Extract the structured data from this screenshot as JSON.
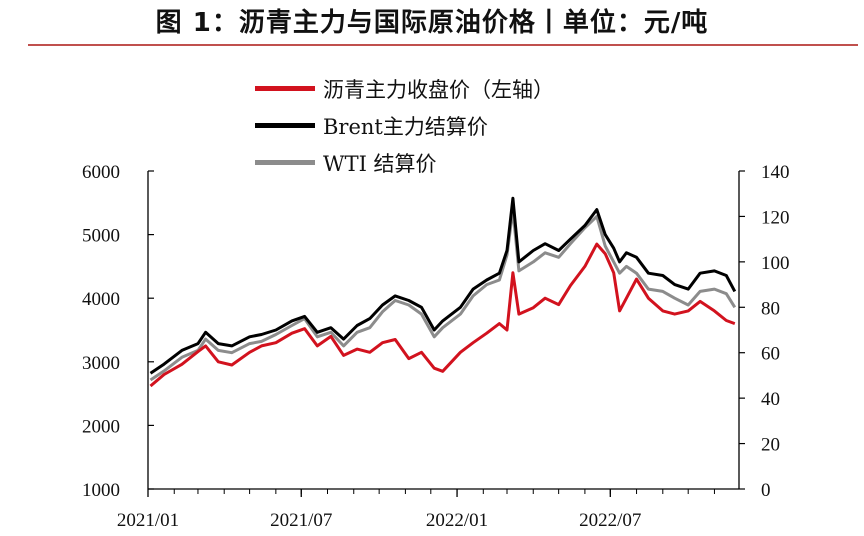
{
  "title": "图 1：沥青主力与国际原油价格丨单位：元/吨",
  "colors": {
    "asphalt": "#d2121e",
    "brent": "#000000",
    "wti": "#8c8c8c",
    "title_rule": "#c0504d"
  },
  "chart_data": {
    "type": "line",
    "legend_placement": "top-center",
    "grid": false,
    "x": {
      "range": [
        "2021-01-01",
        "2022-11-30"
      ],
      "ticks": [
        "2021/01",
        "2021/07",
        "2022/01",
        "2022/07"
      ],
      "tick_dates": [
        "2021-01-01",
        "2021-07-01",
        "2022-01-01",
        "2022-07-01"
      ]
    },
    "y_left": {
      "range": [
        1000,
        6000
      ],
      "ticks": [
        1000,
        2000,
        3000,
        4000,
        5000,
        6000
      ]
    },
    "y_right": {
      "range": [
        0,
        140
      ],
      "ticks": [
        0,
        20,
        40,
        60,
        80,
        100,
        120,
        140
      ]
    },
    "series": [
      {
        "name": "沥青主力收盘价（左轴）",
        "key": "asphalt",
        "axis": "left",
        "points": [
          [
            "2021-01-04",
            2620
          ],
          [
            "2021-01-20",
            2800
          ],
          [
            "2021-02-10",
            2960
          ],
          [
            "2021-03-01",
            3160
          ],
          [
            "2021-03-10",
            3250
          ],
          [
            "2021-03-25",
            3000
          ],
          [
            "2021-04-10",
            2950
          ],
          [
            "2021-05-01",
            3150
          ],
          [
            "2021-05-15",
            3250
          ],
          [
            "2021-06-01",
            3300
          ],
          [
            "2021-06-20",
            3450
          ],
          [
            "2021-07-05",
            3520
          ],
          [
            "2021-07-20",
            3250
          ],
          [
            "2021-08-05",
            3400
          ],
          [
            "2021-08-20",
            3100
          ],
          [
            "2021-09-05",
            3200
          ],
          [
            "2021-09-20",
            3150
          ],
          [
            "2021-10-05",
            3300
          ],
          [
            "2021-10-20",
            3350
          ],
          [
            "2021-11-05",
            3050
          ],
          [
            "2021-11-20",
            3150
          ],
          [
            "2021-12-05",
            2900
          ],
          [
            "2021-12-15",
            2850
          ],
          [
            "2022-01-05",
            3150
          ],
          [
            "2022-01-20",
            3300
          ],
          [
            "2022-02-05",
            3450
          ],
          [
            "2022-02-20",
            3600
          ],
          [
            "2022-03-01",
            3500
          ],
          [
            "2022-03-08",
            4400
          ],
          [
            "2022-03-15",
            3750
          ],
          [
            "2022-04-01",
            3850
          ],
          [
            "2022-04-15",
            4000
          ],
          [
            "2022-05-01",
            3900
          ],
          [
            "2022-05-15",
            4200
          ],
          [
            "2022-06-01",
            4500
          ],
          [
            "2022-06-15",
            4850
          ],
          [
            "2022-06-25",
            4700
          ],
          [
            "2022-07-05",
            4400
          ],
          [
            "2022-07-12",
            3800
          ],
          [
            "2022-07-20",
            4000
          ],
          [
            "2022-08-01",
            4300
          ],
          [
            "2022-08-15",
            4000
          ],
          [
            "2022-09-01",
            3800
          ],
          [
            "2022-09-15",
            3750
          ],
          [
            "2022-10-01",
            3800
          ],
          [
            "2022-10-15",
            3950
          ],
          [
            "2022-11-01",
            3800
          ],
          [
            "2022-11-15",
            3650
          ],
          [
            "2022-11-25",
            3600
          ]
        ]
      },
      {
        "name": "Brent主力结算价",
        "key": "brent",
        "axis": "right",
        "points": [
          [
            "2021-01-04",
            51
          ],
          [
            "2021-01-20",
            55
          ],
          [
            "2021-02-10",
            61
          ],
          [
            "2021-03-01",
            64
          ],
          [
            "2021-03-10",
            69
          ],
          [
            "2021-03-25",
            64
          ],
          [
            "2021-04-10",
            63
          ],
          [
            "2021-05-01",
            67
          ],
          [
            "2021-05-15",
            68
          ],
          [
            "2021-06-01",
            70
          ],
          [
            "2021-06-20",
            74
          ],
          [
            "2021-07-05",
            76
          ],
          [
            "2021-07-20",
            69
          ],
          [
            "2021-08-05",
            71
          ],
          [
            "2021-08-20",
            66
          ],
          [
            "2021-09-05",
            72
          ],
          [
            "2021-09-20",
            75
          ],
          [
            "2021-10-05",
            81
          ],
          [
            "2021-10-20",
            85
          ],
          [
            "2021-11-05",
            83
          ],
          [
            "2021-11-20",
            80
          ],
          [
            "2021-12-05",
            70
          ],
          [
            "2021-12-15",
            74
          ],
          [
            "2022-01-05",
            80
          ],
          [
            "2022-01-20",
            88
          ],
          [
            "2022-02-05",
            92
          ],
          [
            "2022-02-20",
            95
          ],
          [
            "2022-03-01",
            105
          ],
          [
            "2022-03-08",
            128
          ],
          [
            "2022-03-15",
            100
          ],
          [
            "2022-04-01",
            105
          ],
          [
            "2022-04-15",
            108
          ],
          [
            "2022-05-01",
            105
          ],
          [
            "2022-05-15",
            110
          ],
          [
            "2022-06-01",
            116
          ],
          [
            "2022-06-15",
            123
          ],
          [
            "2022-06-25",
            112
          ],
          [
            "2022-07-05",
            106
          ],
          [
            "2022-07-12",
            100
          ],
          [
            "2022-07-20",
            104
          ],
          [
            "2022-08-01",
            102
          ],
          [
            "2022-08-15",
            95
          ],
          [
            "2022-09-01",
            94
          ],
          [
            "2022-09-15",
            90
          ],
          [
            "2022-10-01",
            88
          ],
          [
            "2022-10-15",
            95
          ],
          [
            "2022-11-01",
            96
          ],
          [
            "2022-11-15",
            94
          ],
          [
            "2022-11-25",
            87
          ]
        ]
      },
      {
        "name": "WTI 结算价",
        "key": "wti",
        "axis": "right",
        "points": [
          [
            "2021-01-04",
            48
          ],
          [
            "2021-01-20",
            52
          ],
          [
            "2021-02-10",
            58
          ],
          [
            "2021-03-01",
            61
          ],
          [
            "2021-03-10",
            66
          ],
          [
            "2021-03-25",
            61
          ],
          [
            "2021-04-10",
            60
          ],
          [
            "2021-05-01",
            64
          ],
          [
            "2021-05-15",
            65
          ],
          [
            "2021-06-01",
            68
          ],
          [
            "2021-06-20",
            72
          ],
          [
            "2021-07-05",
            75
          ],
          [
            "2021-07-20",
            67
          ],
          [
            "2021-08-05",
            69
          ],
          [
            "2021-08-20",
            63
          ],
          [
            "2021-09-05",
            69
          ],
          [
            "2021-09-20",
            71
          ],
          [
            "2021-10-05",
            78
          ],
          [
            "2021-10-20",
            83
          ],
          [
            "2021-11-05",
            81
          ],
          [
            "2021-11-20",
            77
          ],
          [
            "2021-12-05",
            67
          ],
          [
            "2021-12-15",
            71
          ],
          [
            "2022-01-05",
            77
          ],
          [
            "2022-01-20",
            85
          ],
          [
            "2022-02-05",
            90
          ],
          [
            "2022-02-20",
            92
          ],
          [
            "2022-03-01",
            103
          ],
          [
            "2022-03-08",
            123
          ],
          [
            "2022-03-15",
            96
          ],
          [
            "2022-04-01",
            100
          ],
          [
            "2022-04-15",
            104
          ],
          [
            "2022-05-01",
            102
          ],
          [
            "2022-05-15",
            108
          ],
          [
            "2022-06-01",
            115
          ],
          [
            "2022-06-15",
            120
          ],
          [
            "2022-06-25",
            107
          ],
          [
            "2022-07-05",
            100
          ],
          [
            "2022-07-12",
            95
          ],
          [
            "2022-07-20",
            98
          ],
          [
            "2022-08-01",
            95
          ],
          [
            "2022-08-15",
            88
          ],
          [
            "2022-09-01",
            87
          ],
          [
            "2022-09-15",
            84
          ],
          [
            "2022-10-01",
            81
          ],
          [
            "2022-10-15",
            87
          ],
          [
            "2022-11-01",
            88
          ],
          [
            "2022-11-15",
            86
          ],
          [
            "2022-11-25",
            80
          ]
        ]
      }
    ]
  }
}
